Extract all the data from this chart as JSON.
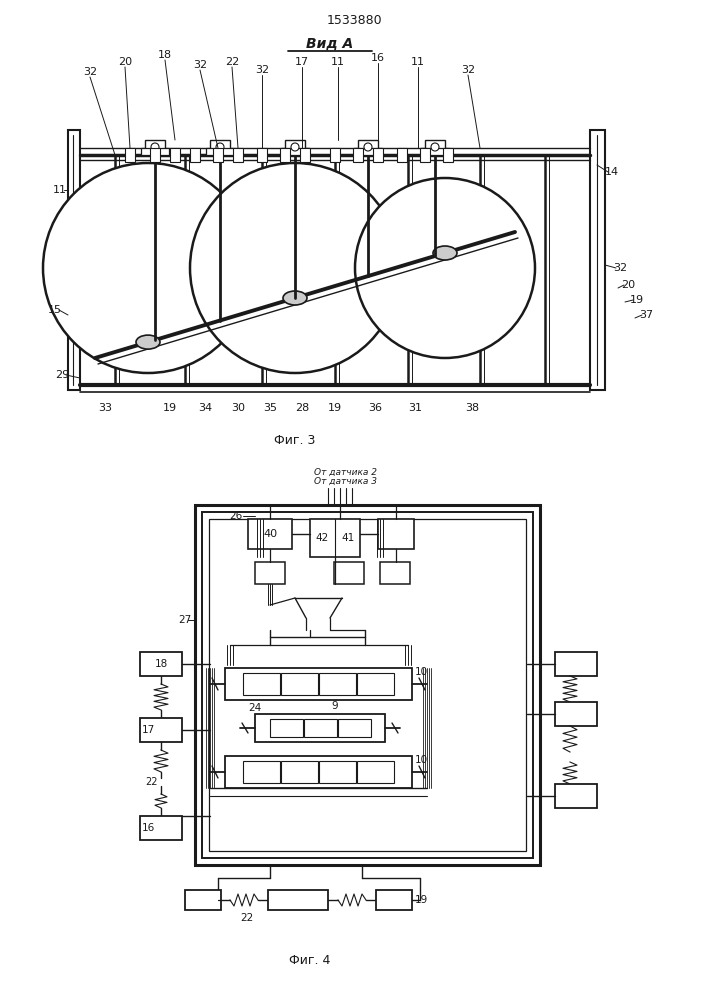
{
  "title": "1533880",
  "bg_color": "#ffffff",
  "lc": "#1a1a1a",
  "fig3_label": "Фиг. 3",
  "fig4_label": "Фиг. 4",
  "vid_a_label": "Вид А",
  "sensor2": "От датчика 2",
  "sensor3": "От датчика 3",
  "note27": "27"
}
